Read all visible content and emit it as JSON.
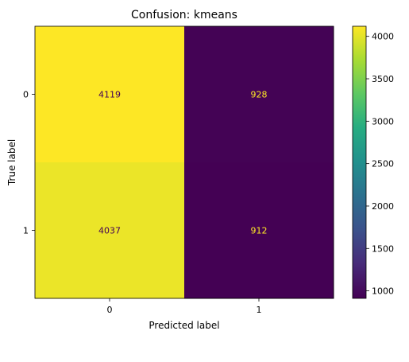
{
  "chart_data": {
    "type": "heatmap",
    "title": "Confusion: kmeans",
    "xlabel": "Predicted label",
    "ylabel": "True label",
    "x_categories": [
      "0",
      "1"
    ],
    "y_categories": [
      "0",
      "1"
    ],
    "values": [
      [
        4119,
        928
      ],
      [
        4037,
        912
      ]
    ],
    "colormap": "viridis",
    "colorbar": {
      "min": 912,
      "max": 4119,
      "ticks": [
        1000,
        1500,
        2000,
        2500,
        3000,
        3500,
        4000
      ]
    },
    "text_colors": {
      "on_light": "#440154",
      "on_dark": "#fde725"
    }
  }
}
